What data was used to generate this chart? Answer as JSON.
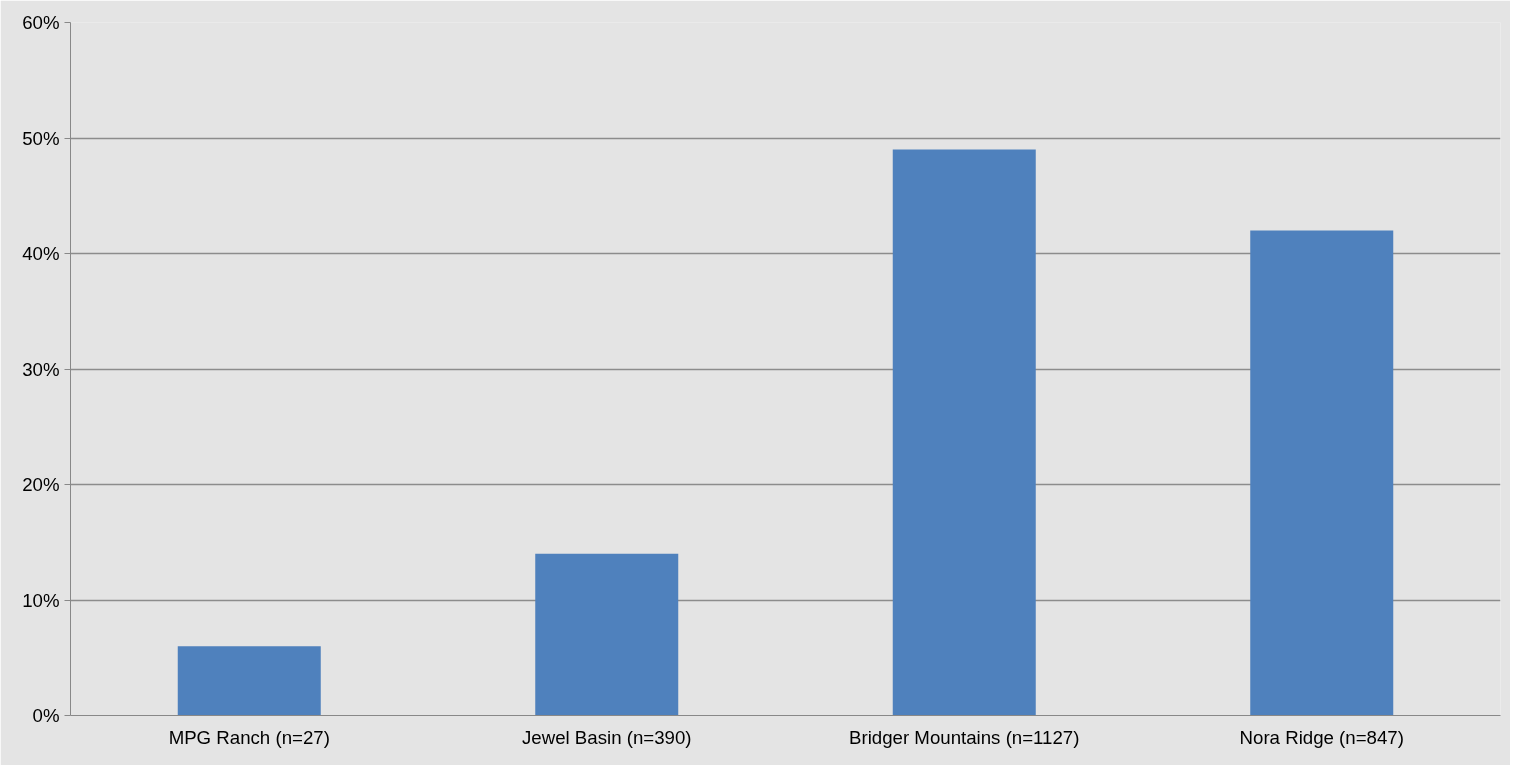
{
  "chart_data": {
    "type": "bar",
    "categories": [
      "MPG Ranch (n=27)",
      "Jewel Basin (n=390)",
      "Bridger Mountains (n=1127)",
      "Nora Ridge (n=847)"
    ],
    "values": [
      6,
      14,
      49,
      42
    ],
    "color": "#4f81bd",
    "ylim": [
      0,
      60
    ],
    "yticks": [
      {
        "value": 0,
        "label": "0%"
      },
      {
        "value": 10,
        "label": "10%"
      },
      {
        "value": 20,
        "label": "20%"
      },
      {
        "value": 30,
        "label": "30%"
      },
      {
        "value": 40,
        "label": "40%"
      },
      {
        "value": 50,
        "label": "50%"
      },
      {
        "value": 60,
        "label": "60%"
      }
    ],
    "grid": "y"
  }
}
